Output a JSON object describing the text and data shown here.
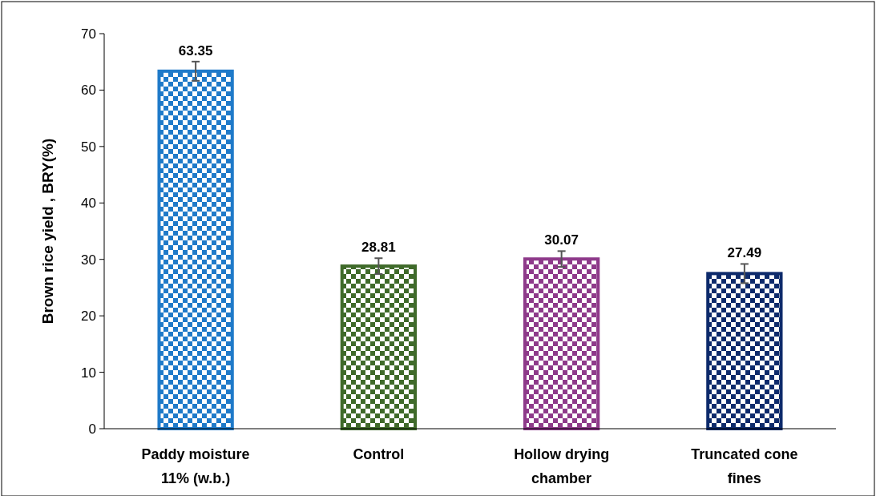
{
  "chart_data": {
    "type": "bar",
    "ylabel": "Brown rice yield , BRY(%)",
    "categories": [
      "Paddy moisture 11% (w.b.)",
      "Control",
      "Hollow drying chamber",
      "Truncated cone fines"
    ],
    "values": [
      63.35,
      28.81,
      30.07,
      27.49
    ],
    "colors": [
      "#1f7ac9",
      "#3f6a2a",
      "#8e3a8a",
      "#0d2a6b"
    ],
    "errors": [
      1.7,
      1.4,
      1.4,
      1.7
    ],
    "ylim": [
      0,
      70
    ],
    "yticks": [
      0,
      10,
      20,
      30,
      40,
      50,
      60,
      70
    ],
    "data_labels": true,
    "grid": false
  }
}
